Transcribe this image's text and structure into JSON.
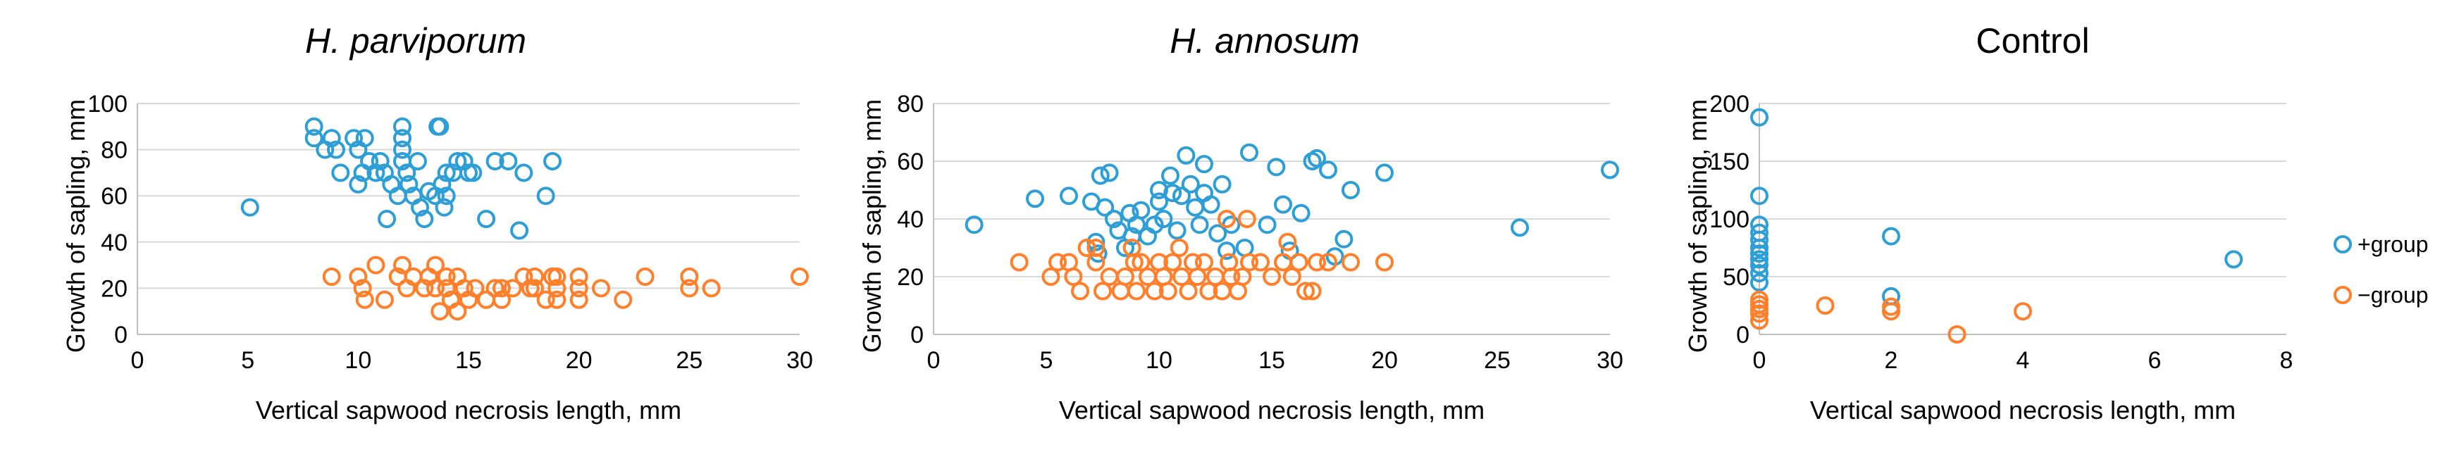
{
  "colors": {
    "plus": "#2e9fd6",
    "minus": "#ff7f2a",
    "grid": "#d9d9d9",
    "axis": "#bfbfbf"
  },
  "legend": [
    {
      "key": "plus",
      "label": "+group"
    },
    {
      "key": "minus",
      "label": "−group"
    }
  ],
  "chart_data": [
    {
      "type": "scatter",
      "title": "H. parviporum",
      "xlabel": "Vertical sapwood necrosis length, mm",
      "ylabel": "Growth of sapling, mm",
      "xlim": [
        0,
        30
      ],
      "ylim": [
        0,
        100
      ],
      "xticks": [
        0,
        5,
        10,
        15,
        20,
        25,
        30
      ],
      "yticks": [
        0,
        20,
        40,
        60,
        80,
        100
      ],
      "series": [
        {
          "name": "+group",
          "key": "plus",
          "points": [
            [
              5.1,
              55
            ],
            [
              8,
              90
            ],
            [
              8,
              85
            ],
            [
              8.5,
              80
            ],
            [
              8.8,
              85
            ],
            [
              9,
              80
            ],
            [
              9.2,
              70
            ],
            [
              9.8,
              85
            ],
            [
              10,
              80
            ],
            [
              10,
              65
            ],
            [
              10.2,
              70
            ],
            [
              10.3,
              85
            ],
            [
              10.5,
              75
            ],
            [
              10.8,
              70
            ],
            [
              11,
              75
            ],
            [
              11.2,
              70
            ],
            [
              11.3,
              50
            ],
            [
              11.5,
              65
            ],
            [
              11.8,
              60
            ],
            [
              12,
              90
            ],
            [
              12,
              85
            ],
            [
              12,
              80
            ],
            [
              12,
              75
            ],
            [
              12.2,
              70
            ],
            [
              12.3,
              65
            ],
            [
              12.5,
              60
            ],
            [
              12.7,
              75
            ],
            [
              12.8,
              55
            ],
            [
              13,
              50
            ],
            [
              13.2,
              62
            ],
            [
              13.5,
              60
            ],
            [
              13.6,
              90
            ],
            [
              13.7,
              90
            ],
            [
              13.8,
              65
            ],
            [
              13.9,
              55
            ],
            [
              14,
              70
            ],
            [
              14,
              60
            ],
            [
              14.3,
              70
            ],
            [
              14.5,
              75
            ],
            [
              14.8,
              75
            ],
            [
              15,
              70
            ],
            [
              15.2,
              70
            ],
            [
              15.8,
              50
            ],
            [
              16.2,
              75
            ],
            [
              16.8,
              75
            ],
            [
              17.3,
              45
            ],
            [
              17.5,
              70
            ],
            [
              18.5,
              60
            ],
            [
              18.8,
              75
            ]
          ]
        },
        {
          "name": "−group",
          "key": "minus",
          "points": [
            [
              8.8,
              25
            ],
            [
              10,
              25
            ],
            [
              10.2,
              20
            ],
            [
              10.3,
              15
            ],
            [
              10.8,
              30
            ],
            [
              11.2,
              15
            ],
            [
              11.8,
              25
            ],
            [
              12,
              30
            ],
            [
              12.2,
              20
            ],
            [
              12.5,
              25
            ],
            [
              13,
              20
            ],
            [
              13.2,
              25
            ],
            [
              13.5,
              30
            ],
            [
              13.5,
              20
            ],
            [
              13.7,
              10
            ],
            [
              14,
              25
            ],
            [
              14,
              20
            ],
            [
              14.2,
              15
            ],
            [
              14.5,
              10
            ],
            [
              14.5,
              25
            ],
            [
              14.8,
              20
            ],
            [
              15,
              15
            ],
            [
              15.3,
              20
            ],
            [
              15.8,
              15
            ],
            [
              16.2,
              20
            ],
            [
              16.5,
              20
            ],
            [
              16.5,
              15
            ],
            [
              17,
              20
            ],
            [
              17.5,
              25
            ],
            [
              17.8,
              20
            ],
            [
              18,
              20
            ],
            [
              18,
              25
            ],
            [
              18.5,
              15
            ],
            [
              18.8,
              25
            ],
            [
              19,
              25
            ],
            [
              19,
              20
            ],
            [
              19,
              15
            ],
            [
              20,
              20
            ],
            [
              20,
              25
            ],
            [
              20,
              15
            ],
            [
              21,
              20
            ],
            [
              22,
              15
            ],
            [
              23,
              25
            ],
            [
              25,
              25
            ],
            [
              25,
              20
            ],
            [
              26,
              20
            ],
            [
              30,
              25
            ]
          ]
        }
      ]
    },
    {
      "type": "scatter",
      "title": "H. annosum",
      "xlabel": "Vertical sapwood necrosis length, mm",
      "ylabel": "Growth of sapling, mm",
      "xlim": [
        0,
        30
      ],
      "ylim": [
        0,
        80
      ],
      "xticks": [
        0,
        5,
        10,
        15,
        20,
        25,
        30
      ],
      "yticks": [
        0,
        20,
        40,
        60,
        80
      ],
      "series": [
        {
          "name": "+group",
          "key": "plus",
          "points": [
            [
              1.8,
              38
            ],
            [
              4.5,
              47
            ],
            [
              6,
              48
            ],
            [
              7,
              46
            ],
            [
              7.2,
              32
            ],
            [
              7.3,
              28
            ],
            [
              7.4,
              55
            ],
            [
              7.6,
              44
            ],
            [
              7.8,
              56
            ],
            [
              8,
              40
            ],
            [
              8.2,
              36
            ],
            [
              8.5,
              30
            ],
            [
              8.7,
              42
            ],
            [
              8.8,
              34
            ],
            [
              9,
              38
            ],
            [
              9.2,
              43
            ],
            [
              9.5,
              34
            ],
            [
              9.8,
              38
            ],
            [
              10,
              46
            ],
            [
              10,
              50
            ],
            [
              10.2,
              40
            ],
            [
              10.5,
              55
            ],
            [
              10.6,
              49
            ],
            [
              10.8,
              36
            ],
            [
              11,
              48
            ],
            [
              11.2,
              62
            ],
            [
              11.4,
              52
            ],
            [
              11.6,
              44
            ],
            [
              11.8,
              38
            ],
            [
              12,
              59
            ],
            [
              12,
              49
            ],
            [
              12.3,
              45
            ],
            [
              12.6,
              35
            ],
            [
              12.8,
              52
            ],
            [
              13,
              29
            ],
            [
              13.2,
              38
            ],
            [
              13.8,
              30
            ],
            [
              14,
              63
            ],
            [
              14.8,
              38
            ],
            [
              15.2,
              58
            ],
            [
              15.5,
              45
            ],
            [
              15.8,
              29
            ],
            [
              16.3,
              42
            ],
            [
              16.8,
              60
            ],
            [
              17,
              61
            ],
            [
              17.5,
              57
            ],
            [
              17.8,
              27
            ],
            [
              18.2,
              33
            ],
            [
              18.5,
              50
            ],
            [
              20,
              56
            ],
            [
              26,
              37
            ],
            [
              30,
              57
            ]
          ]
        },
        {
          "name": "−group",
          "key": "minus",
          "points": [
            [
              3.8,
              25
            ],
            [
              5.2,
              20
            ],
            [
              5.5,
              25
            ],
            [
              6,
              25
            ],
            [
              6.2,
              20
            ],
            [
              6.5,
              15
            ],
            [
              6.8,
              30
            ],
            [
              7.2,
              30
            ],
            [
              7.2,
              25
            ],
            [
              7.5,
              15
            ],
            [
              7.8,
              20
            ],
            [
              8.3,
              15
            ],
            [
              8.5,
              20
            ],
            [
              8.8,
              30
            ],
            [
              8.9,
              25
            ],
            [
              9,
              15
            ],
            [
              9.2,
              25
            ],
            [
              9.5,
              20
            ],
            [
              9.8,
              15
            ],
            [
              10,
              25
            ],
            [
              10.2,
              20
            ],
            [
              10.4,
              15
            ],
            [
              10.6,
              25
            ],
            [
              10.9,
              30
            ],
            [
              11,
              20
            ],
            [
              11.3,
              15
            ],
            [
              11.5,
              25
            ],
            [
              11.7,
              20
            ],
            [
              12,
              25
            ],
            [
              12.2,
              15
            ],
            [
              12.5,
              20
            ],
            [
              12.8,
              15
            ],
            [
              13,
              40
            ],
            [
              13.1,
              25
            ],
            [
              13.2,
              20
            ],
            [
              13.5,
              15
            ],
            [
              13.7,
              20
            ],
            [
              13.9,
              40
            ],
            [
              14,
              25
            ],
            [
              14.5,
              25
            ],
            [
              15,
              20
            ],
            [
              15.5,
              25
            ],
            [
              15.7,
              32
            ],
            [
              15.9,
              20
            ],
            [
              16.2,
              25
            ],
            [
              16.5,
              15
            ],
            [
              16.8,
              15
            ],
            [
              17,
              25
            ],
            [
              17.5,
              25
            ],
            [
              18.5,
              25
            ],
            [
              20,
              25
            ]
          ]
        }
      ]
    },
    {
      "type": "scatter",
      "title": "Control",
      "xlabel": "Vertical sapwood necrosis length, mm",
      "ylabel": "Growth of sapling, mm",
      "xlim": [
        0,
        8
      ],
      "ylim": [
        0,
        200
      ],
      "xticks": [
        0,
        2,
        4,
        6,
        8
      ],
      "yticks": [
        0,
        50,
        100,
        150,
        200
      ],
      "series": [
        {
          "name": "+group",
          "key": "plus",
          "points": [
            [
              0,
              188
            ],
            [
              0,
              120
            ],
            [
              0,
              95
            ],
            [
              0,
              88
            ],
            [
              0,
              82
            ],
            [
              0,
              75
            ],
            [
              0,
              70
            ],
            [
              0,
              65
            ],
            [
              0,
              60
            ],
            [
              0,
              53
            ],
            [
              0,
              45
            ],
            [
              2,
              85
            ],
            [
              2,
              33
            ],
            [
              7.2,
              65
            ]
          ]
        },
        {
          "name": "−group",
          "key": "minus",
          "points": [
            [
              0,
              30
            ],
            [
              0,
              26
            ],
            [
              0,
              22
            ],
            [
              0,
              18
            ],
            [
              0,
              12
            ],
            [
              1,
              25
            ],
            [
              2,
              24
            ],
            [
              2,
              20
            ],
            [
              3,
              0
            ],
            [
              4,
              20
            ]
          ]
        }
      ]
    }
  ]
}
